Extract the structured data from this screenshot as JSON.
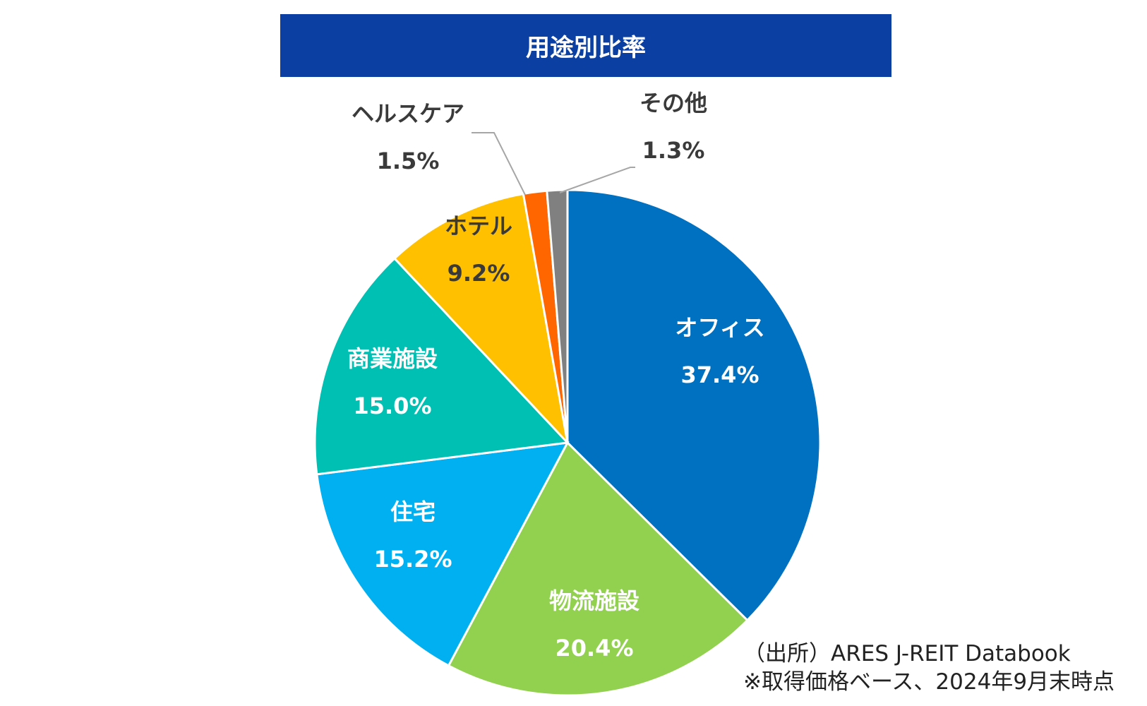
{
  "chart_data": {
    "type": "pie",
    "title": "用途別比率",
    "categories": [
      "オフィス",
      "物流施設",
      "住宅",
      "商業施設",
      "ホテル",
      "ヘルスケア",
      "その他"
    ],
    "values": [
      37.4,
      20.4,
      15.2,
      15.0,
      9.2,
      1.5,
      1.3
    ],
    "labels": [
      "37.4%",
      "20.4%",
      "15.2%",
      "15.0%",
      "9.2%",
      "1.5%",
      "1.3%"
    ],
    "colors": [
      "#0070c0",
      "#92d050",
      "#00b0f0",
      "#00bfb3",
      "#ffc000",
      "#ff6600",
      "#808080"
    ]
  },
  "footnote": {
    "source": "（出所）ARES J-REIT Databook",
    "note": "※取得価格ベース、2024年9月末時点"
  }
}
